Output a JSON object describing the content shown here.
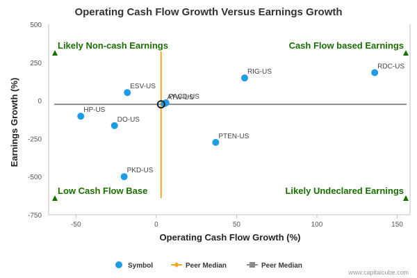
{
  "chart_data": {
    "type": "scatter",
    "title": "Operating Cash Flow Growth Versus Earnings Growth",
    "xlabel": "Operating Cash Flow Growth (%)",
    "ylabel": "Earnings Growth (%)",
    "xlim": [
      -67,
      158
    ],
    "ylim": [
      -750,
      500
    ],
    "x_ticks": [
      -50,
      0,
      50,
      100,
      150
    ],
    "y_ticks": [
      500,
      250,
      0,
      -250,
      -500,
      -750
    ],
    "series": [
      {
        "name": "Symbol",
        "color": "#1e9ce6",
        "points": [
          {
            "label": "RDC-US",
            "x": 136,
            "y": 183
          },
          {
            "label": "RIG-US",
            "x": 55,
            "y": 148
          },
          {
            "label": "ESV-US",
            "x": -18,
            "y": 52
          },
          {
            "label": "PACD-US",
            "x": 6,
            "y": -15
          },
          {
            "label": "ATW-US",
            "x": 5,
            "y": -20
          },
          {
            "label": "HP-US",
            "x": -47,
            "y": -103
          },
          {
            "label": "DO-US",
            "x": -26,
            "y": -165
          },
          {
            "label": "PTEN-US",
            "x": 37,
            "y": -275
          },
          {
            "label": "PKD-US",
            "x": -20,
            "y": -500
          }
        ]
      }
    ],
    "reference_lines": [
      {
        "name": "Peer Median",
        "orientation": "vertical",
        "value": 3,
        "color": "#f5a623"
      },
      {
        "name": "Peer Median",
        "orientation": "horizontal",
        "value": -25,
        "color": "#8c8c8c"
      }
    ],
    "highlight_point": {
      "x": 3,
      "y": -25
    },
    "quadrant_labels": {
      "top_left": "Likely Non-cash Earnings",
      "top_right": "Cash Flow based Earnings",
      "bottom_left": "Low Cash Flow Base",
      "bottom_right": "Likely Undeclared Earnings"
    },
    "quadrant_color": "#1a6e00",
    "legend": [
      {
        "label": "Symbol",
        "marker": "circle",
        "color": "#1e9ce6"
      },
      {
        "label": "Peer Median",
        "marker": "diamond-line",
        "color": "#f5a623"
      },
      {
        "label": "Peer Median",
        "marker": "square-line",
        "color": "#8c8c8c"
      }
    ],
    "legend_position": "bottom-center",
    "grid": false
  },
  "credit": "www.capitalcube.com"
}
